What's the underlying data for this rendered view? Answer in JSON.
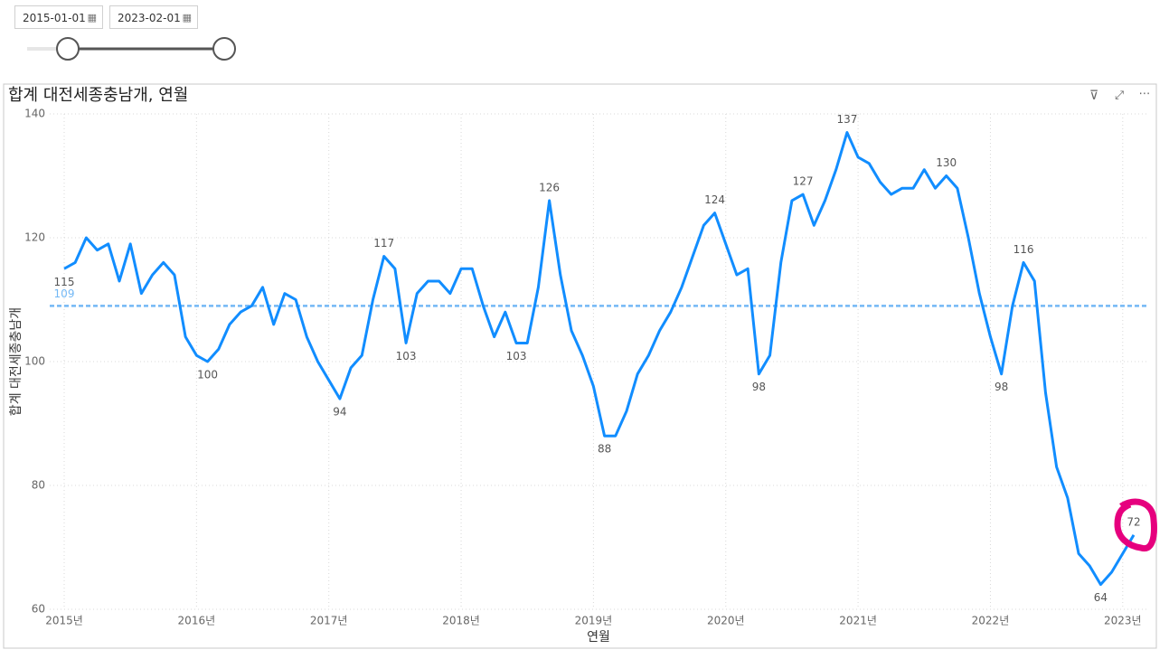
{
  "slicer": {
    "start": "2015-01-01",
    "end": "2023-02-01"
  },
  "chart_data": {
    "type": "line",
    "title": "합계 대전세종충남개, 연월",
    "x_label": "연월",
    "y_label": "합계 대전세종충남개",
    "categories": [
      "2015년",
      null,
      null,
      null,
      null,
      null,
      null,
      null,
      null,
      null,
      null,
      null,
      "2016년",
      null,
      null,
      null,
      null,
      null,
      null,
      null,
      null,
      null,
      null,
      null,
      "2017년",
      null,
      null,
      null,
      null,
      null,
      null,
      null,
      null,
      null,
      null,
      null,
      "2018년",
      null,
      null,
      null,
      null,
      null,
      null,
      null,
      null,
      null,
      null,
      null,
      "2019년",
      null,
      null,
      null,
      null,
      null,
      null,
      null,
      null,
      null,
      null,
      null,
      "2020년",
      null,
      null,
      null,
      null,
      null,
      null,
      null,
      null,
      null,
      null,
      null,
      "2021년",
      null,
      null,
      null,
      null,
      null,
      null,
      null,
      null,
      null,
      null,
      null,
      "2022년",
      null,
      null,
      null,
      null,
      null,
      null,
      null,
      null,
      null,
      null,
      null,
      "2023년",
      null
    ],
    "series": [
      {
        "name": "합계 대전세종충남개",
        "color": "#118dff",
        "values": [
          115,
          116,
          120,
          118,
          119,
          113,
          119,
          111,
          114,
          116,
          114,
          104,
          101,
          100,
          102,
          106,
          108,
          109,
          112,
          106,
          111,
          110,
          104,
          100,
          97,
          94,
          99,
          101,
          110,
          117,
          115,
          103,
          111,
          113,
          113,
          111,
          115,
          115,
          109,
          104,
          108,
          103,
          103,
          112,
          126,
          114,
          105,
          101,
          96,
          88,
          88,
          92,
          98,
          101,
          105,
          108,
          112,
          117,
          122,
          124,
          119,
          114,
          115,
          98,
          101,
          116,
          126,
          127,
          122,
          126,
          131,
          137,
          133,
          132,
          129,
          127,
          128,
          128,
          131,
          128,
          130,
          128,
          120,
          111,
          104,
          98,
          109,
          116,
          113,
          95,
          83,
          78,
          69,
          67,
          64,
          66,
          69,
          72
        ],
        "value_labels": [
          "115",
          null,
          null,
          null,
          null,
          null,
          null,
          null,
          null,
          null,
          null,
          null,
          null,
          "100",
          null,
          null,
          null,
          null,
          null,
          null,
          null,
          null,
          null,
          null,
          null,
          "94",
          null,
          null,
          null,
          "117",
          null,
          "103",
          null,
          null,
          null,
          null,
          null,
          null,
          null,
          null,
          null,
          "103",
          null,
          null,
          "126",
          null,
          null,
          null,
          null,
          "88",
          null,
          null,
          null,
          null,
          null,
          null,
          null,
          null,
          null,
          "124",
          null,
          null,
          null,
          "98",
          null,
          null,
          null,
          "127",
          null,
          null,
          null,
          "137",
          null,
          null,
          null,
          null,
          null,
          null,
          null,
          null,
          "130",
          null,
          null,
          null,
          null,
          "98",
          null,
          "116",
          null,
          null,
          null,
          null,
          null,
          null,
          "64",
          null,
          null,
          "72"
        ]
      }
    ],
    "reference_line": {
      "value": 109,
      "color": "#73b8f5"
    },
    "ylim": [
      60,
      140
    ],
    "yticks": [
      60,
      80,
      100,
      120,
      140
    ],
    "grid": true
  }
}
